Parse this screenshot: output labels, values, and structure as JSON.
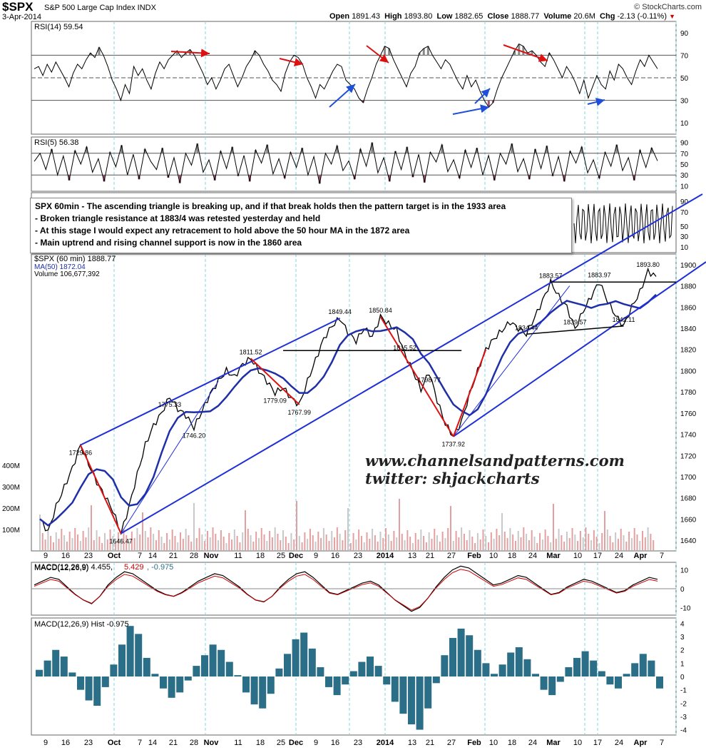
{
  "header": {
    "symbol": "$SPX",
    "name": "S&P 500 Large Cap Index INDX",
    "date": "3-Apr-2014",
    "open_label": "Open",
    "open": "1891.43",
    "high_label": "High",
    "high": "1893.80",
    "low_label": "Low",
    "low": "1882.65",
    "close_label": "Close",
    "close": "1888.77",
    "volume_label": "Volume",
    "volume": "20.6M",
    "chg_label": "Chg",
    "chg": "-2.13 (-0.11%)",
    "copyright": "© StockCharts.com"
  },
  "colors": {
    "price_bar": "#000000",
    "down_bar": "#cc0000",
    "ma": "#1f2fa8",
    "channel": "#1f2fd8",
    "annotation_red": "#dd1111",
    "macd_hist": "#2a6e87",
    "volume": "#d99",
    "grid": "#7fd7e0",
    "rsi_fill": "#888888"
  },
  "notes": [
    "SPX 60min - The ascending triangle is breaking up, and if that break holds then the pattern target is in the 1933 area",
    "- Broken triangle resistance at 1883/4 was retested yesterday and held",
    "- At this stage I would expect any retracement to hold above the 50 hour MA in the 1872 area",
    "- Main uptrend and rising channel support is now in the 1860 area"
  ],
  "brand": {
    "line1": "www.channelsandpatterns.com",
    "line2": "twitter: shjackcharts"
  },
  "chart_data": [
    {
      "type": "line",
      "name_label": "RSI(14) 59.54",
      "ylim": [
        0,
        100
      ],
      "ticks": [
        "90",
        "70",
        "50",
        "30",
        "10"
      ],
      "tick_values": [
        90,
        70,
        50,
        30,
        10
      ],
      "levels": [
        70,
        50,
        30
      ],
      "values": [
        58,
        60,
        52,
        62,
        55,
        64,
        57,
        50,
        42,
        54,
        62,
        58,
        66,
        72,
        68,
        77,
        70,
        60,
        48,
        40,
        30,
        44,
        36,
        60,
        52,
        58,
        48,
        40,
        54,
        64,
        58,
        66,
        70,
        74,
        68,
        72,
        75,
        70,
        62,
        54,
        44,
        50,
        40,
        48,
        58,
        62,
        52,
        42,
        50,
        60,
        66,
        74,
        70,
        62,
        56,
        48,
        44,
        38,
        54,
        64,
        70,
        68,
        62,
        50,
        42,
        32,
        44,
        40,
        48,
        56,
        62,
        60,
        48,
        44,
        40,
        32,
        28,
        40,
        50,
        62,
        70,
        78,
        76,
        66,
        58,
        50,
        42,
        54,
        60,
        72,
        76,
        78,
        70,
        64,
        58,
        66,
        62,
        54,
        46,
        40,
        52,
        42,
        48,
        38,
        30,
        24,
        28,
        40,
        50,
        58,
        66,
        74,
        80,
        78,
        72,
        74,
        70,
        64,
        60,
        72,
        66,
        58,
        50,
        60,
        54,
        46,
        36,
        48,
        32,
        42,
        52,
        44,
        40,
        56,
        48,
        62,
        58,
        50,
        44,
        56,
        66,
        60,
        70,
        64,
        58
      ]
    },
    {
      "type": "line",
      "name_label": "RSI(5) 56.38",
      "ylim": [
        0,
        100
      ],
      "ticks": [
        "90",
        "70",
        "50",
        "30",
        "10"
      ],
      "tick_values": [
        90,
        70,
        50,
        30,
        10
      ],
      "levels": [
        70,
        30
      ],
      "values": [
        55,
        70,
        40,
        78,
        30,
        65,
        20,
        75,
        50,
        82,
        35,
        60,
        18,
        72,
        45,
        85,
        30,
        68,
        22,
        78,
        55,
        40,
        80,
        25,
        62,
        15,
        70,
        48,
        88,
        35,
        58,
        20,
        74,
        42,
        82,
        28,
        66,
        18,
        76,
        52,
        86,
        32,
        60,
        24,
        72,
        44,
        80,
        30,
        64,
        14,
        70,
        50,
        84,
        38,
        56,
        22,
        78,
        46,
        90,
        34,
        62,
        18,
        74,
        40,
        82,
        26,
        68,
        16,
        72,
        54,
        86,
        36,
        58,
        24,
        76,
        44,
        80,
        30,
        66,
        20,
        70,
        50,
        88,
        36,
        60,
        22,
        78,
        42,
        84,
        28,
        64,
        18,
        74,
        52,
        82,
        34,
        58,
        24,
        72,
        46,
        86,
        38,
        62,
        20,
        76,
        44,
        80,
        56
      ]
    },
    {
      "type": "line",
      "name_label": "$SPX (60 min) 1888.77",
      "ma_label": "MA(50) 1872.04",
      "volume_label": "Volume 106,677,392",
      "ylim": [
        1630,
        1910
      ],
      "ticks": [
        "1900",
        "1880",
        "1860",
        "1840",
        "1820",
        "1800",
        "1780",
        "1760",
        "1740",
        "1720",
        "1700",
        "1680",
        "1660",
        "1640"
      ],
      "tick_values": [
        1900,
        1880,
        1860,
        1840,
        1820,
        1800,
        1780,
        1760,
        1740,
        1720,
        1700,
        1680,
        1660,
        1640
      ],
      "volume_ticks": [
        "400M",
        "300M",
        "200M",
        "100M"
      ],
      "x_labels": [
        "9",
        "16",
        "23",
        "Oct",
        "7",
        "14",
        "21",
        "28",
        "Nov",
        "11",
        "18",
        "25",
        "Dec",
        "9",
        "16",
        "23",
        "2014",
        "13",
        "21",
        "27",
        "Feb",
        "10",
        "18",
        "24",
        "Mar",
        "10",
        "17",
        "24",
        "Apr",
        "7"
      ],
      "price_anchors": [
        [
          0,
          1660
        ],
        [
          3,
          1648
        ],
        [
          6,
          1672
        ],
        [
          9,
          1690
        ],
        [
          12,
          1708
        ],
        [
          15,
          1729.86
        ],
        [
          18,
          1712
        ],
        [
          21,
          1695
        ],
        [
          24,
          1682
        ],
        [
          27,
          1668
        ],
        [
          30,
          1646.47
        ],
        [
          33,
          1672
        ],
        [
          36,
          1702
        ],
        [
          39,
          1730
        ],
        [
          42,
          1748
        ],
        [
          45,
          1760
        ],
        [
          48,
          1775.33
        ],
        [
          51,
          1764
        ],
        [
          54,
          1758
        ],
        [
          57,
          1746.2
        ],
        [
          60,
          1762
        ],
        [
          63,
          1778
        ],
        [
          66,
          1790
        ],
        [
          69,
          1800
        ],
        [
          72,
          1794
        ],
        [
          75,
          1806
        ],
        [
          78,
          1811.52
        ],
        [
          81,
          1800
        ],
        [
          84,
          1790
        ],
        [
          87,
          1779.09
        ],
        [
          90,
          1784
        ],
        [
          93,
          1774
        ],
        [
          96,
          1767.99
        ],
        [
          99,
          1790
        ],
        [
          102,
          1810
        ],
        [
          105,
          1830
        ],
        [
          108,
          1842
        ],
        [
          111,
          1849.44
        ],
        [
          114,
          1836
        ],
        [
          117,
          1828
        ],
        [
          120,
          1840
        ],
        [
          123,
          1832
        ],
        [
          126,
          1850.84
        ],
        [
          129,
          1844
        ],
        [
          132,
          1838
        ],
        [
          135,
          1815.52
        ],
        [
          138,
          1800
        ],
        [
          141,
          1782
        ],
        [
          144,
          1798.77
        ],
        [
          147,
          1772
        ],
        [
          150,
          1750
        ],
        [
          153,
          1737.92
        ],
        [
          156,
          1752
        ],
        [
          159,
          1778
        ],
        [
          162,
          1800
        ],
        [
          165,
          1820
        ],
        [
          168,
          1830
        ],
        [
          171,
          1838
        ],
        [
          174,
          1846
        ],
        [
          177,
          1840
        ],
        [
          180,
          1834.44
        ],
        [
          183,
          1850
        ],
        [
          186,
          1866
        ],
        [
          189,
          1883.57
        ],
        [
          192,
          1870
        ],
        [
          195,
          1860
        ],
        [
          198,
          1839.57
        ],
        [
          201,
          1856
        ],
        [
          204,
          1870
        ],
        [
          207,
          1883.97
        ],
        [
          210,
          1866
        ],
        [
          213,
          1852
        ],
        [
          216,
          1842.11
        ],
        [
          219,
          1860
        ],
        [
          222,
          1874
        ],
        [
          225,
          1893.8
        ],
        [
          228,
          1888.77
        ]
      ],
      "labels": [
        {
          "text": "1729.86",
          "x": 15,
          "y": 1729.86
        },
        {
          "text": "1646.47",
          "x": 30,
          "y": 1646.47
        },
        {
          "text": "1775.33",
          "x": 48,
          "y": 1775.33
        },
        {
          "text": "1746.20",
          "x": 57,
          "y": 1746.2
        },
        {
          "text": "1811.52",
          "x": 78,
          "y": 1811.52
        },
        {
          "text": "1779.09",
          "x": 87,
          "y": 1779.09
        },
        {
          "text": "1767.99",
          "x": 96,
          "y": 1767.99
        },
        {
          "text": "1849.44",
          "x": 111,
          "y": 1849.44
        },
        {
          "text": "1850.84",
          "x": 126,
          "y": 1850.84
        },
        {
          "text": "1815.52",
          "x": 135,
          "y": 1815.52
        },
        {
          "text": "1798.77",
          "x": 144,
          "y": 1798.77
        },
        {
          "text": "1737.92",
          "x": 153,
          "y": 1737.92
        },
        {
          "text": "1834.44",
          "x": 180,
          "y": 1834.44
        },
        {
          "text": "1883.57",
          "x": 189,
          "y": 1883.57
        },
        {
          "text": "1839.57",
          "x": 198,
          "y": 1839.57
        },
        {
          "text": "1883.97",
          "x": 207,
          "y": 1883.97
        },
        {
          "text": "1842.11",
          "x": 216,
          "y": 1842.11
        },
        {
          "text": "1893.80",
          "x": 225,
          "y": 1893.8
        }
      ]
    },
    {
      "type": "line",
      "name_label": "MACD(12,26,9)",
      "macd_value": "4.455",
      "signal_value": "5.429",
      "hist_value": "-0.975",
      "ylim": [
        -14,
        14
      ],
      "ticks": [
        "10",
        "0",
        "-10"
      ],
      "tick_values": [
        10,
        0,
        -10
      ],
      "values": [
        2,
        4,
        6,
        5,
        1,
        -3,
        -6,
        -8,
        -4,
        2,
        6,
        9,
        8,
        5,
        2,
        -1,
        -3,
        -4,
        -2,
        1,
        4,
        6,
        8,
        7,
        4,
        1,
        -3,
        -6,
        -7,
        -4,
        1,
        5,
        8,
        9,
        6,
        2,
        -2,
        -3,
        -1,
        1,
        3,
        4,
        2,
        -2,
        -6,
        -9,
        -12,
        -10,
        -5,
        1,
        6,
        10,
        12,
        11,
        8,
        5,
        2,
        3,
        5,
        7,
        6,
        3,
        0,
        -3,
        -2,
        1,
        3,
        5,
        4,
        2,
        0,
        -2,
        -1,
        2,
        4,
        6,
        5
      ]
    },
    {
      "type": "bar",
      "name_label": "MACD(12,26,9) Hist -0.975",
      "ylim": [
        -4.4,
        4.4
      ],
      "ticks": [
        "4",
        "3",
        "2",
        "1",
        "0",
        "-1",
        "-2",
        "-3",
        "-4"
      ],
      "tick_values": [
        4,
        3,
        2,
        1,
        0,
        -1,
        -2,
        -3,
        -4
      ],
      "values": [
        0.5,
        1.2,
        2,
        1.5,
        0.3,
        -1,
        -1.8,
        -2.2,
        -0.8,
        0.9,
        2.4,
        3.8,
        3.2,
        1.4,
        0.2,
        -0.9,
        -1.6,
        -1.2,
        -0.3,
        0.8,
        1.6,
        2.4,
        2,
        1.1,
        0.1,
        -1.2,
        -2.1,
        -2.4,
        -1.3,
        0.6,
        1.7,
        2.8,
        3.3,
        2.1,
        0.7,
        -0.8,
        -1.4,
        -0.6,
        0.4,
        1.1,
        1.5,
        0.8,
        -0.6,
        -1.9,
        -2.8,
        -3.6,
        -4,
        -2.4,
        -0.5,
        1.6,
        2.9,
        3.6,
        3.1,
        2,
        1,
        0.2,
        0.9,
        1.8,
        2.2,
        1.3,
        0.2,
        -1,
        -1.4,
        -0.4,
        0.7,
        1.4,
        1.9,
        1.2,
        0.4,
        -0.6,
        -0.9,
        0.2,
        1,
        1.7,
        1.2,
        -0.9
      ]
    }
  ]
}
